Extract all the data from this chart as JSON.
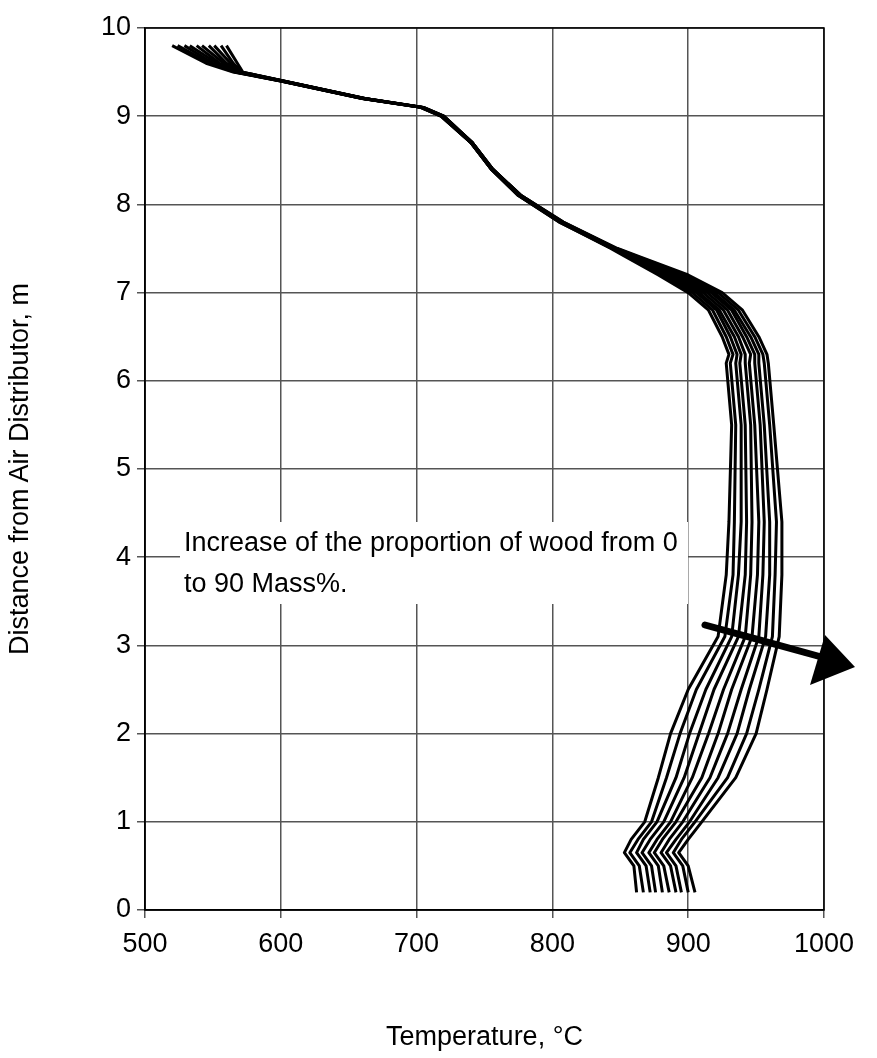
{
  "chart_data": {
    "type": "line",
    "xlabel": "Temperature, °C",
    "ylabel": "Distance from Air Distributor, m",
    "xlim": [
      500,
      1000
    ],
    "xticks": [
      500,
      600,
      700,
      800,
      900,
      1000
    ],
    "ylim": [
      0,
      10
    ],
    "yticks": [
      0,
      1,
      2,
      3,
      4,
      5,
      6,
      7,
      8,
      9,
      10
    ],
    "grid": true,
    "legend": false,
    "marker": "none",
    "line_style": "solid",
    "annotations": [
      "Increase of the proportion of wood from 0 to 90 Mass%."
    ],
    "series": [
      {
        "color": "#000000",
        "x": [
          520,
          545,
          565,
          600,
          660,
          703,
          718,
          740,
          755,
          775,
          805,
          843,
          878,
          900,
          915,
          925,
          930,
          928,
          932,
          930,
          928,
          922,
          900,
          887,
          878,
          868,
          858,
          853,
          860,
          862
        ],
        "values": [
          9.8,
          9.6,
          9.5,
          9.4,
          9.2,
          9.1,
          9.0,
          8.7,
          8.4,
          8.1,
          7.8,
          7.5,
          7.2,
          7.0,
          6.8,
          6.5,
          6.3,
          6.2,
          5.5,
          4.4,
          3.8,
          3.1,
          2.5,
          2.0,
          1.5,
          1.0,
          0.8,
          0.65,
          0.5,
          0.2
        ]
      },
      {
        "color": "#000000",
        "x": [
          524,
          548,
          566,
          600,
          660,
          703,
          718,
          740,
          755,
          775,
          805,
          844,
          880,
          903,
          918,
          928,
          933,
          931,
          935,
          934,
          933,
          927,
          906,
          894,
          884,
          873,
          863,
          857,
          864,
          867
        ],
        "values": [
          9.8,
          9.6,
          9.5,
          9.4,
          9.2,
          9.1,
          9.0,
          8.7,
          8.4,
          8.1,
          7.8,
          7.5,
          7.2,
          7.0,
          6.8,
          6.5,
          6.3,
          6.2,
          5.5,
          4.4,
          3.8,
          3.1,
          2.5,
          2.0,
          1.5,
          1.0,
          0.8,
          0.65,
          0.5,
          0.2
        ]
      },
      {
        "color": "#000000",
        "x": [
          529,
          550,
          567,
          600,
          660,
          703,
          718,
          740,
          755,
          775,
          806,
          844,
          883,
          906,
          921,
          931,
          936,
          935,
          939,
          939,
          937,
          932,
          913,
          901,
          891,
          877,
          867,
          862,
          869,
          872
        ],
        "values": [
          9.8,
          9.6,
          9.5,
          9.4,
          9.2,
          9.1,
          9.0,
          8.7,
          8.4,
          8.1,
          7.8,
          7.5,
          7.2,
          7.0,
          6.8,
          6.5,
          6.3,
          6.2,
          5.5,
          4.4,
          3.8,
          3.1,
          2.5,
          2.0,
          1.5,
          1.0,
          0.8,
          0.65,
          0.5,
          0.2
        ]
      },
      {
        "color": "#000000",
        "x": [
          533,
          553,
          567,
          601,
          661,
          704,
          719,
          740,
          755,
          776,
          806,
          845,
          885,
          908,
          923,
          934,
          939,
          938,
          942,
          943,
          942,
          937,
          919,
          908,
          897,
          882,
          872,
          866,
          873,
          876
        ],
        "values": [
          9.8,
          9.6,
          9.5,
          9.4,
          9.2,
          9.1,
          9.0,
          8.7,
          8.4,
          8.1,
          7.8,
          7.5,
          7.2,
          7.0,
          6.8,
          6.5,
          6.3,
          6.2,
          5.5,
          4.4,
          3.8,
          3.1,
          2.5,
          2.0,
          1.5,
          1.0,
          0.8,
          0.65,
          0.5,
          0.2
        ]
      },
      {
        "color": "#000000",
        "x": [
          538,
          555,
          568,
          601,
          661,
          704,
          719,
          740,
          755,
          776,
          806,
          845,
          888,
          911,
          926,
          937,
          942,
          942,
          946,
          947,
          946,
          942,
          926,
          915,
          903,
          887,
          877,
          871,
          878,
          881
        ],
        "values": [
          9.8,
          9.6,
          9.5,
          9.4,
          9.2,
          9.1,
          9.0,
          8.7,
          8.4,
          8.1,
          7.8,
          7.5,
          7.2,
          7.0,
          6.8,
          6.5,
          6.3,
          6.2,
          5.5,
          4.4,
          3.8,
          3.1,
          2.5,
          2.0,
          1.5,
          1.0,
          0.8,
          0.65,
          0.5,
          0.2
        ]
      },
      {
        "color": "#000000",
        "x": [
          542,
          558,
          569,
          601,
          661,
          704,
          719,
          741,
          756,
          776,
          807,
          846,
          890,
          914,
          929,
          940,
          946,
          945,
          949,
          952,
          951,
          947,
          932,
          922,
          910,
          891,
          881,
          875,
          882,
          886
        ],
        "values": [
          9.8,
          9.6,
          9.5,
          9.4,
          9.2,
          9.1,
          9.0,
          8.7,
          8.4,
          8.1,
          7.8,
          7.5,
          7.2,
          7.0,
          6.8,
          6.5,
          6.3,
          6.2,
          5.5,
          4.4,
          3.8,
          3.1,
          2.5,
          2.0,
          1.5,
          1.0,
          0.8,
          0.65,
          0.5,
          0.2
        ]
      },
      {
        "color": "#000000",
        "x": [
          547,
          560,
          570,
          601,
          661,
          704,
          719,
          741,
          756,
          776,
          807,
          846,
          893,
          917,
          932,
          943,
          949,
          949,
          953,
          956,
          955,
          952,
          939,
          929,
          916,
          896,
          886,
          880,
          887,
          891
        ],
        "values": [
          9.8,
          9.6,
          9.5,
          9.4,
          9.2,
          9.1,
          9.0,
          8.7,
          8.4,
          8.1,
          7.8,
          7.5,
          7.2,
          7.0,
          6.8,
          6.5,
          6.3,
          6.2,
          5.5,
          4.4,
          3.8,
          3.1,
          2.5,
          2.0,
          1.5,
          1.0,
          0.8,
          0.65,
          0.5,
          0.2
        ]
      },
      {
        "color": "#000000",
        "x": [
          551,
          563,
          571,
          602,
          662,
          705,
          720,
          741,
          756,
          777,
          807,
          847,
          895,
          919,
          934,
          946,
          952,
          952,
          956,
          960,
          960,
          957,
          945,
          936,
          922,
          901,
          891,
          884,
          891,
          895
        ],
        "values": [
          9.8,
          9.6,
          9.5,
          9.4,
          9.2,
          9.1,
          9.0,
          8.7,
          8.4,
          8.1,
          7.8,
          7.5,
          7.2,
          7.0,
          6.8,
          6.5,
          6.3,
          6.2,
          5.5,
          4.4,
          3.8,
          3.1,
          2.5,
          2.0,
          1.5,
          1.0,
          0.8,
          0.65,
          0.5,
          0.2
        ]
      },
      {
        "color": "#000000",
        "x": [
          556,
          565,
          571,
          602,
          662,
          705,
          720,
          741,
          756,
          777,
          808,
          847,
          898,
          922,
          937,
          949,
          955,
          956,
          960,
          965,
          964,
          962,
          952,
          943,
          929,
          905,
          895,
          889,
          896,
          900
        ],
        "values": [
          9.8,
          9.6,
          9.5,
          9.4,
          9.2,
          9.1,
          9.0,
          8.7,
          8.4,
          8.1,
          7.8,
          7.5,
          7.2,
          7.0,
          6.8,
          6.5,
          6.3,
          6.2,
          5.5,
          4.4,
          3.8,
          3.1,
          2.5,
          2.0,
          1.5,
          1.0,
          0.8,
          0.65,
          0.5,
          0.2
        ]
      },
      {
        "color": "#000000",
        "x": [
          560,
          568,
          572,
          602,
          662,
          705,
          720,
          741,
          756,
          777,
          808,
          848,
          900,
          925,
          940,
          952,
          958,
          959,
          963,
          969,
          969,
          967,
          958,
          950,
          935,
          910,
          900,
          893,
          900,
          905
        ],
        "values": [
          9.8,
          9.6,
          9.5,
          9.4,
          9.2,
          9.1,
          9.0,
          8.7,
          8.4,
          8.1,
          7.8,
          7.5,
          7.2,
          7.0,
          6.8,
          6.5,
          6.3,
          6.2,
          5.5,
          4.4,
          3.8,
          3.1,
          2.5,
          2.0,
          1.5,
          1.0,
          0.8,
          0.65,
          0.5,
          0.2
        ]
      }
    ]
  }
}
